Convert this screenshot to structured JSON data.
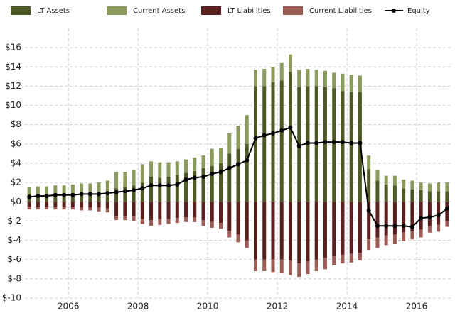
{
  "chart_data": {
    "type": "bar",
    "x": [
      2004.875,
      2005.125,
      2005.375,
      2005.625,
      2005.875,
      2006.125,
      2006.375,
      2006.625,
      2006.875,
      2007.125,
      2007.375,
      2007.625,
      2007.875,
      2008.125,
      2008.375,
      2008.625,
      2008.875,
      2009.125,
      2009.375,
      2009.625,
      2009.875,
      2010.125,
      2010.375,
      2010.625,
      2010.875,
      2011.125,
      2011.375,
      2011.625,
      2011.875,
      2012.125,
      2012.375,
      2012.625,
      2012.875,
      2013.125,
      2013.375,
      2013.625,
      2013.875,
      2014.125,
      2014.375,
      2014.625,
      2014.875,
      2015.125,
      2015.375,
      2015.625,
      2015.875,
      2016.125,
      2016.375,
      2016.625,
      2016.875
    ],
    "series": [
      {
        "name": "LT Assets",
        "color": "#4d5a26",
        "values": [
          0.8,
          0.8,
          0.8,
          0.9,
          0.9,
          0.9,
          1.0,
          1.0,
          1.0,
          1.1,
          1.4,
          1.5,
          1.7,
          2.0,
          2.6,
          2.5,
          2.6,
          2.8,
          3.0,
          3.2,
          3.5,
          3.7,
          4.0,
          5.0,
          5.5,
          6.0,
          12.0,
          12.0,
          12.4,
          12.6,
          13.5,
          11.9,
          12.0,
          12.0,
          11.9,
          11.8,
          11.5,
          11.4,
          11.4,
          3.4,
          2.2,
          1.8,
          1.7,
          1.4,
          1.3,
          1.2,
          1.1,
          1.1,
          1.1
        ]
      },
      {
        "name": "Current Assets",
        "color": "#8a9a5b",
        "values": [
          0.7,
          0.8,
          0.8,
          0.8,
          0.8,
          0.9,
          0.9,
          0.9,
          1.0,
          1.1,
          1.7,
          1.6,
          1.6,
          1.9,
          1.6,
          1.6,
          1.5,
          1.4,
          1.4,
          1.4,
          1.3,
          1.8,
          1.6,
          2.1,
          2.4,
          3.0,
          1.7,
          1.8,
          1.6,
          1.8,
          1.8,
          1.8,
          1.8,
          1.7,
          1.7,
          1.6,
          1.8,
          1.8,
          1.7,
          1.4,
          1.1,
          0.9,
          1.0,
          0.9,
          0.9,
          0.8,
          0.8,
          0.9,
          0.9
        ]
      },
      {
        "name": "LT Liabilities",
        "color": "#5a1f1f",
        "values": [
          -0.5,
          -0.5,
          -0.5,
          -0.5,
          -0.5,
          -0.5,
          -0.6,
          -0.6,
          -0.6,
          -0.7,
          -1.5,
          -1.5,
          -1.5,
          -1.8,
          -1.9,
          -1.8,
          -1.8,
          -1.7,
          -1.6,
          -1.6,
          -1.9,
          -2.1,
          -2.2,
          -3.0,
          -3.4,
          -4.0,
          -6.0,
          -6.0,
          -6.0,
          -6.0,
          -6.1,
          -6.4,
          -6.2,
          -6.0,
          -5.8,
          -5.6,
          -5.5,
          -5.4,
          -5.3,
          -3.9,
          -3.7,
          -3.5,
          -3.4,
          -3.2,
          -3.1,
          -2.9,
          -2.5,
          -2.4,
          -2.0
        ]
      },
      {
        "name": "Current Liabilities",
        "color": "#9c5b55",
        "values": [
          -0.3,
          -0.3,
          -0.3,
          -0.3,
          -0.3,
          -0.3,
          -0.3,
          -0.3,
          -0.4,
          -0.4,
          -0.4,
          -0.4,
          -0.5,
          -0.5,
          -0.6,
          -0.6,
          -0.5,
          -0.5,
          -0.5,
          -0.5,
          -0.6,
          -0.6,
          -0.6,
          -0.7,
          -0.8,
          -0.8,
          -1.2,
          -1.2,
          -1.3,
          -1.4,
          -1.5,
          -1.4,
          -1.3,
          -1.2,
          -1.2,
          -1.0,
          -0.9,
          -0.9,
          -0.8,
          -1.1,
          -1.1,
          -1.0,
          -1.0,
          -0.9,
          -0.8,
          -0.8,
          -0.7,
          -0.7,
          -0.6
        ]
      },
      {
        "name": "Equity",
        "color": "#000000",
        "type": "line",
        "values": [
          0.5,
          0.6,
          0.6,
          0.7,
          0.7,
          0.7,
          0.8,
          0.8,
          0.8,
          0.9,
          1.0,
          1.1,
          1.2,
          1.4,
          1.7,
          1.7,
          1.7,
          1.8,
          2.3,
          2.5,
          2.6,
          2.9,
          3.1,
          3.5,
          3.9,
          4.3,
          6.6,
          6.9,
          7.1,
          7.4,
          7.7,
          5.8,
          6.1,
          6.1,
          6.2,
          6.2,
          6.2,
          6.1,
          6.1,
          -0.9,
          -2.5,
          -2.5,
          -2.5,
          -2.5,
          -2.6,
          -1.7,
          -1.6,
          -1.4,
          -0.7
        ]
      }
    ],
    "xlim": [
      2004.75,
      2017.0
    ],
    "xticks": [
      2006,
      2008,
      2010,
      2012,
      2014,
      2016
    ],
    "ylim": [
      -10,
      18
    ],
    "yticks": [
      {
        "value": -10,
        "label": "$-10"
      },
      {
        "value": -8,
        "label": "$-8"
      },
      {
        "value": -6,
        "label": "$-6"
      },
      {
        "value": -4,
        "label": "$-4"
      },
      {
        "value": -2,
        "label": "$-2"
      },
      {
        "value": 0,
        "label": "$0"
      },
      {
        "value": 2,
        "label": "$2"
      },
      {
        "value": 4,
        "label": "$4"
      },
      {
        "value": 6,
        "label": "$6"
      },
      {
        "value": 8,
        "label": "$8"
      },
      {
        "value": 10,
        "label": "$10"
      },
      {
        "value": 12,
        "label": "$12"
      },
      {
        "value": 14,
        "label": "$14"
      },
      {
        "value": 16,
        "label": "$16"
      }
    ],
    "grid": true
  }
}
